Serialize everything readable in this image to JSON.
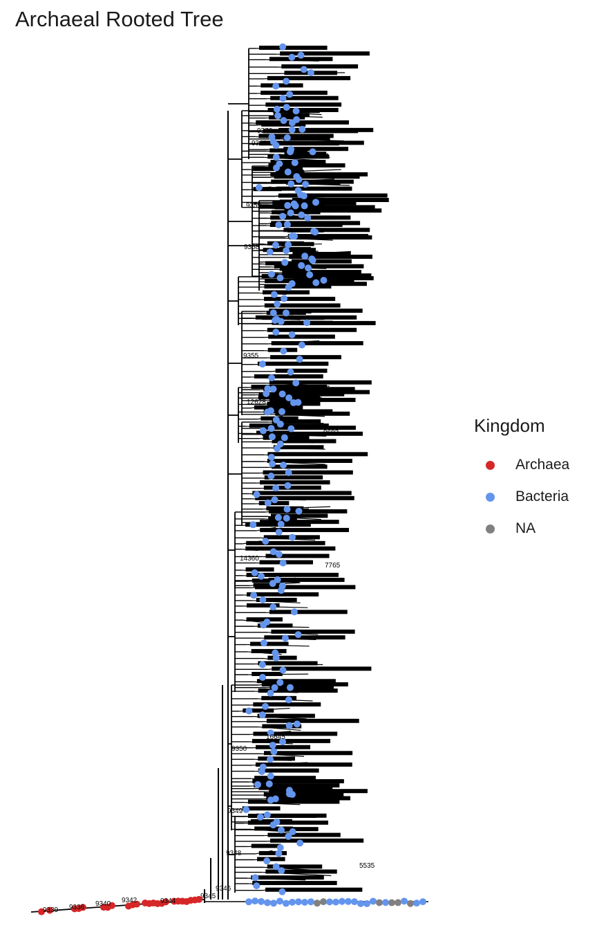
{
  "title": "Archaeal Rooted Tree",
  "legend": {
    "title": "Kingdom",
    "items": [
      {
        "label": "Archaea",
        "color": "#d62728"
      },
      {
        "label": "Bacteria",
        "color": "#6495ed"
      },
      {
        "label": "NA",
        "color": "#808080"
      }
    ]
  },
  "node_labels": [
    "9376",
    "9361",
    "9359",
    "9358",
    "9355",
    "12628",
    "14360",
    "9350",
    "9349",
    "9348",
    "9346",
    "9342",
    "16645",
    "7765",
    "9692",
    "5535",
    "9339",
    "9336",
    "9340",
    "9344",
    "9345"
  ]
}
